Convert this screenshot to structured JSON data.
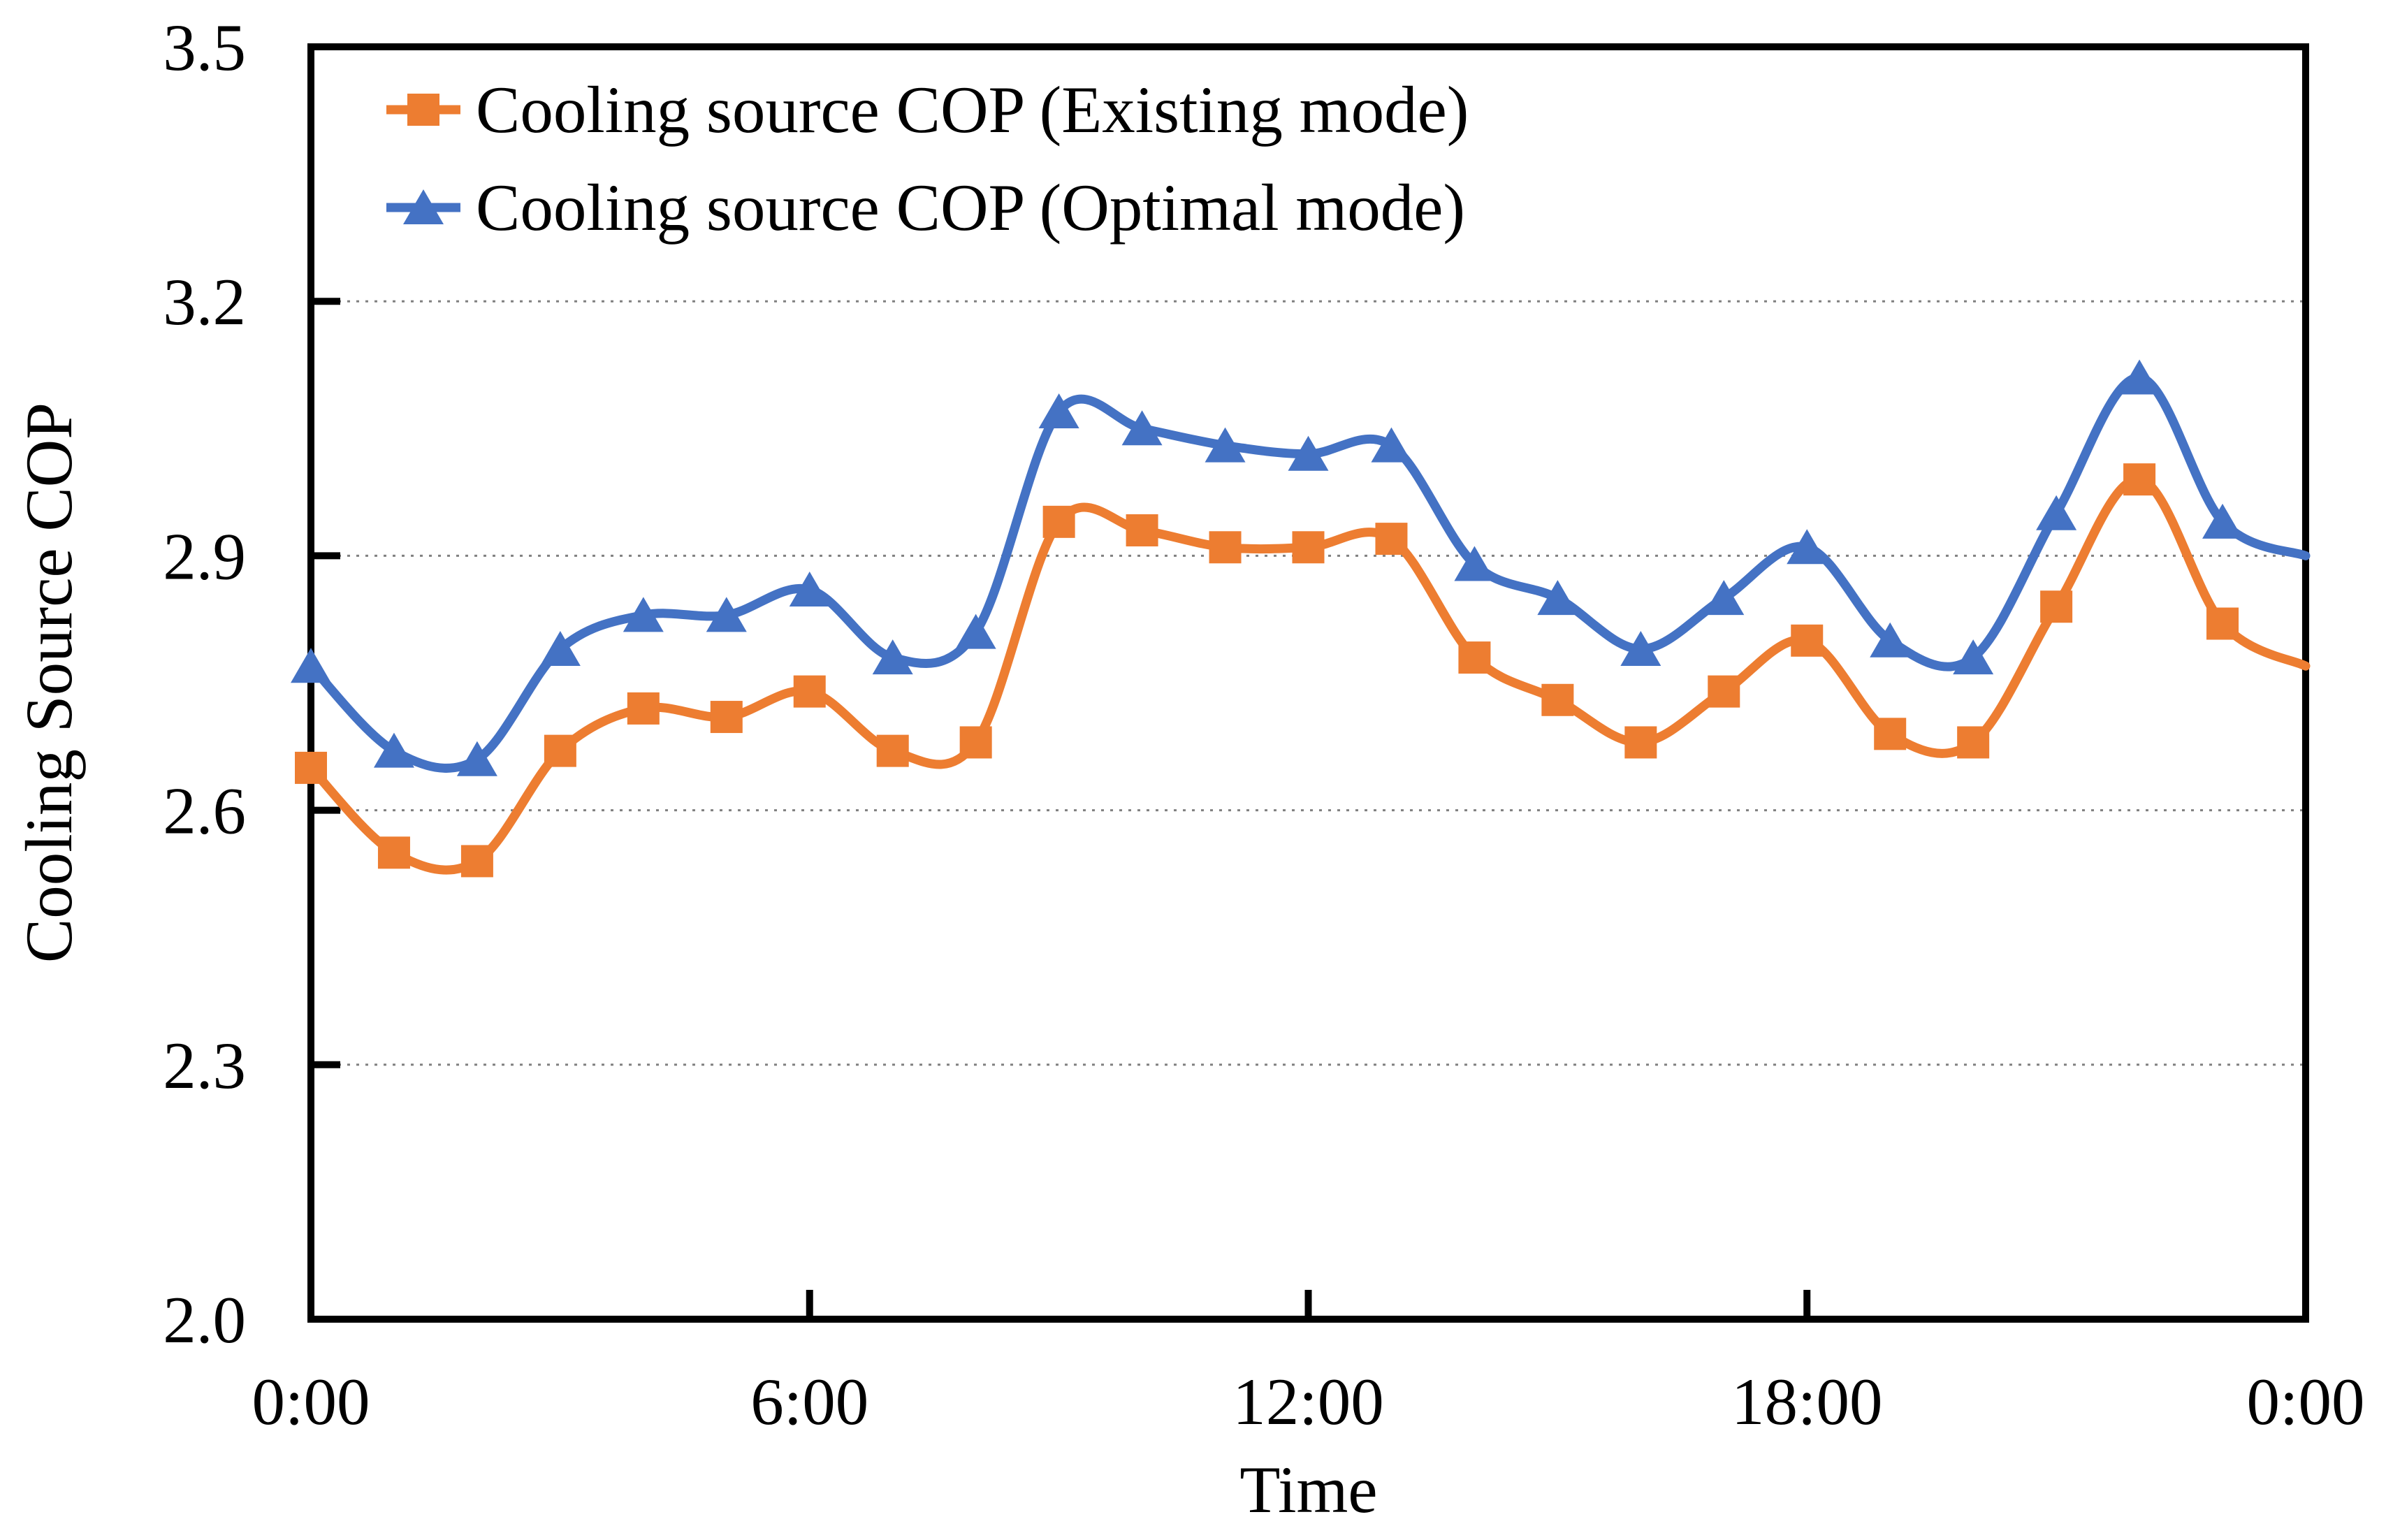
{
  "legend": {
    "items": [
      {
        "label": "Cooling source COP (Existing mode)",
        "color": "#ED7D31",
        "marker": "square"
      },
      {
        "label": "Cooling source COP (Optimal mode)",
        "color": "#4472C4",
        "marker": "triangle"
      }
    ]
  },
  "chart_data": {
    "type": "line",
    "title": "",
    "xlabel": "Time",
    "ylabel": "Cooling Source COP",
    "x_hours": [
      0,
      1,
      2,
      3,
      4,
      5,
      6,
      7,
      8,
      9,
      10,
      11,
      12,
      13,
      14,
      15,
      16,
      17,
      18,
      19,
      20,
      21,
      22,
      23,
      24
    ],
    "x_tick_hours": [
      0,
      6,
      12,
      18,
      24
    ],
    "x_tick_labels": [
      "0:00",
      "6:00",
      "12:00",
      "18:00",
      "0:00"
    ],
    "y_ticks": [
      2.0,
      2.3,
      2.6,
      2.9,
      3.2,
      3.5
    ],
    "y_tick_labels": [
      "2.0",
      "2.3",
      "2.6",
      "2.9",
      "3.2",
      "3.5"
    ],
    "ylim": [
      2.0,
      3.5
    ],
    "xlim_hours": [
      0,
      24
    ],
    "grid": "horizontal-dotted",
    "gridline_color": "#808080",
    "axis_color": "#000000",
    "legend_position": "top-left-inside",
    "smooth": true,
    "marker_on_last_point": false,
    "series": [
      {
        "name": "Cooling source COP (Existing mode)",
        "color": "#ED7D31",
        "marker": "square",
        "values": [
          2.65,
          2.55,
          2.54,
          2.67,
          2.72,
          2.71,
          2.74,
          2.67,
          2.68,
          2.94,
          2.93,
          2.91,
          2.91,
          2.92,
          2.78,
          2.73,
          2.68,
          2.74,
          2.8,
          2.69,
          2.68,
          2.84,
          2.99,
          2.82,
          2.77
        ]
      },
      {
        "name": "Cooling source COP (Optimal mode)",
        "color": "#4472C4",
        "marker": "triangle",
        "values": [
          2.77,
          2.67,
          2.66,
          2.79,
          2.83,
          2.83,
          2.86,
          2.78,
          2.81,
          3.07,
          3.05,
          3.03,
          3.02,
          3.03,
          2.89,
          2.85,
          2.79,
          2.85,
          2.91,
          2.8,
          2.78,
          2.95,
          3.11,
          2.94,
          2.9
        ]
      }
    ]
  }
}
